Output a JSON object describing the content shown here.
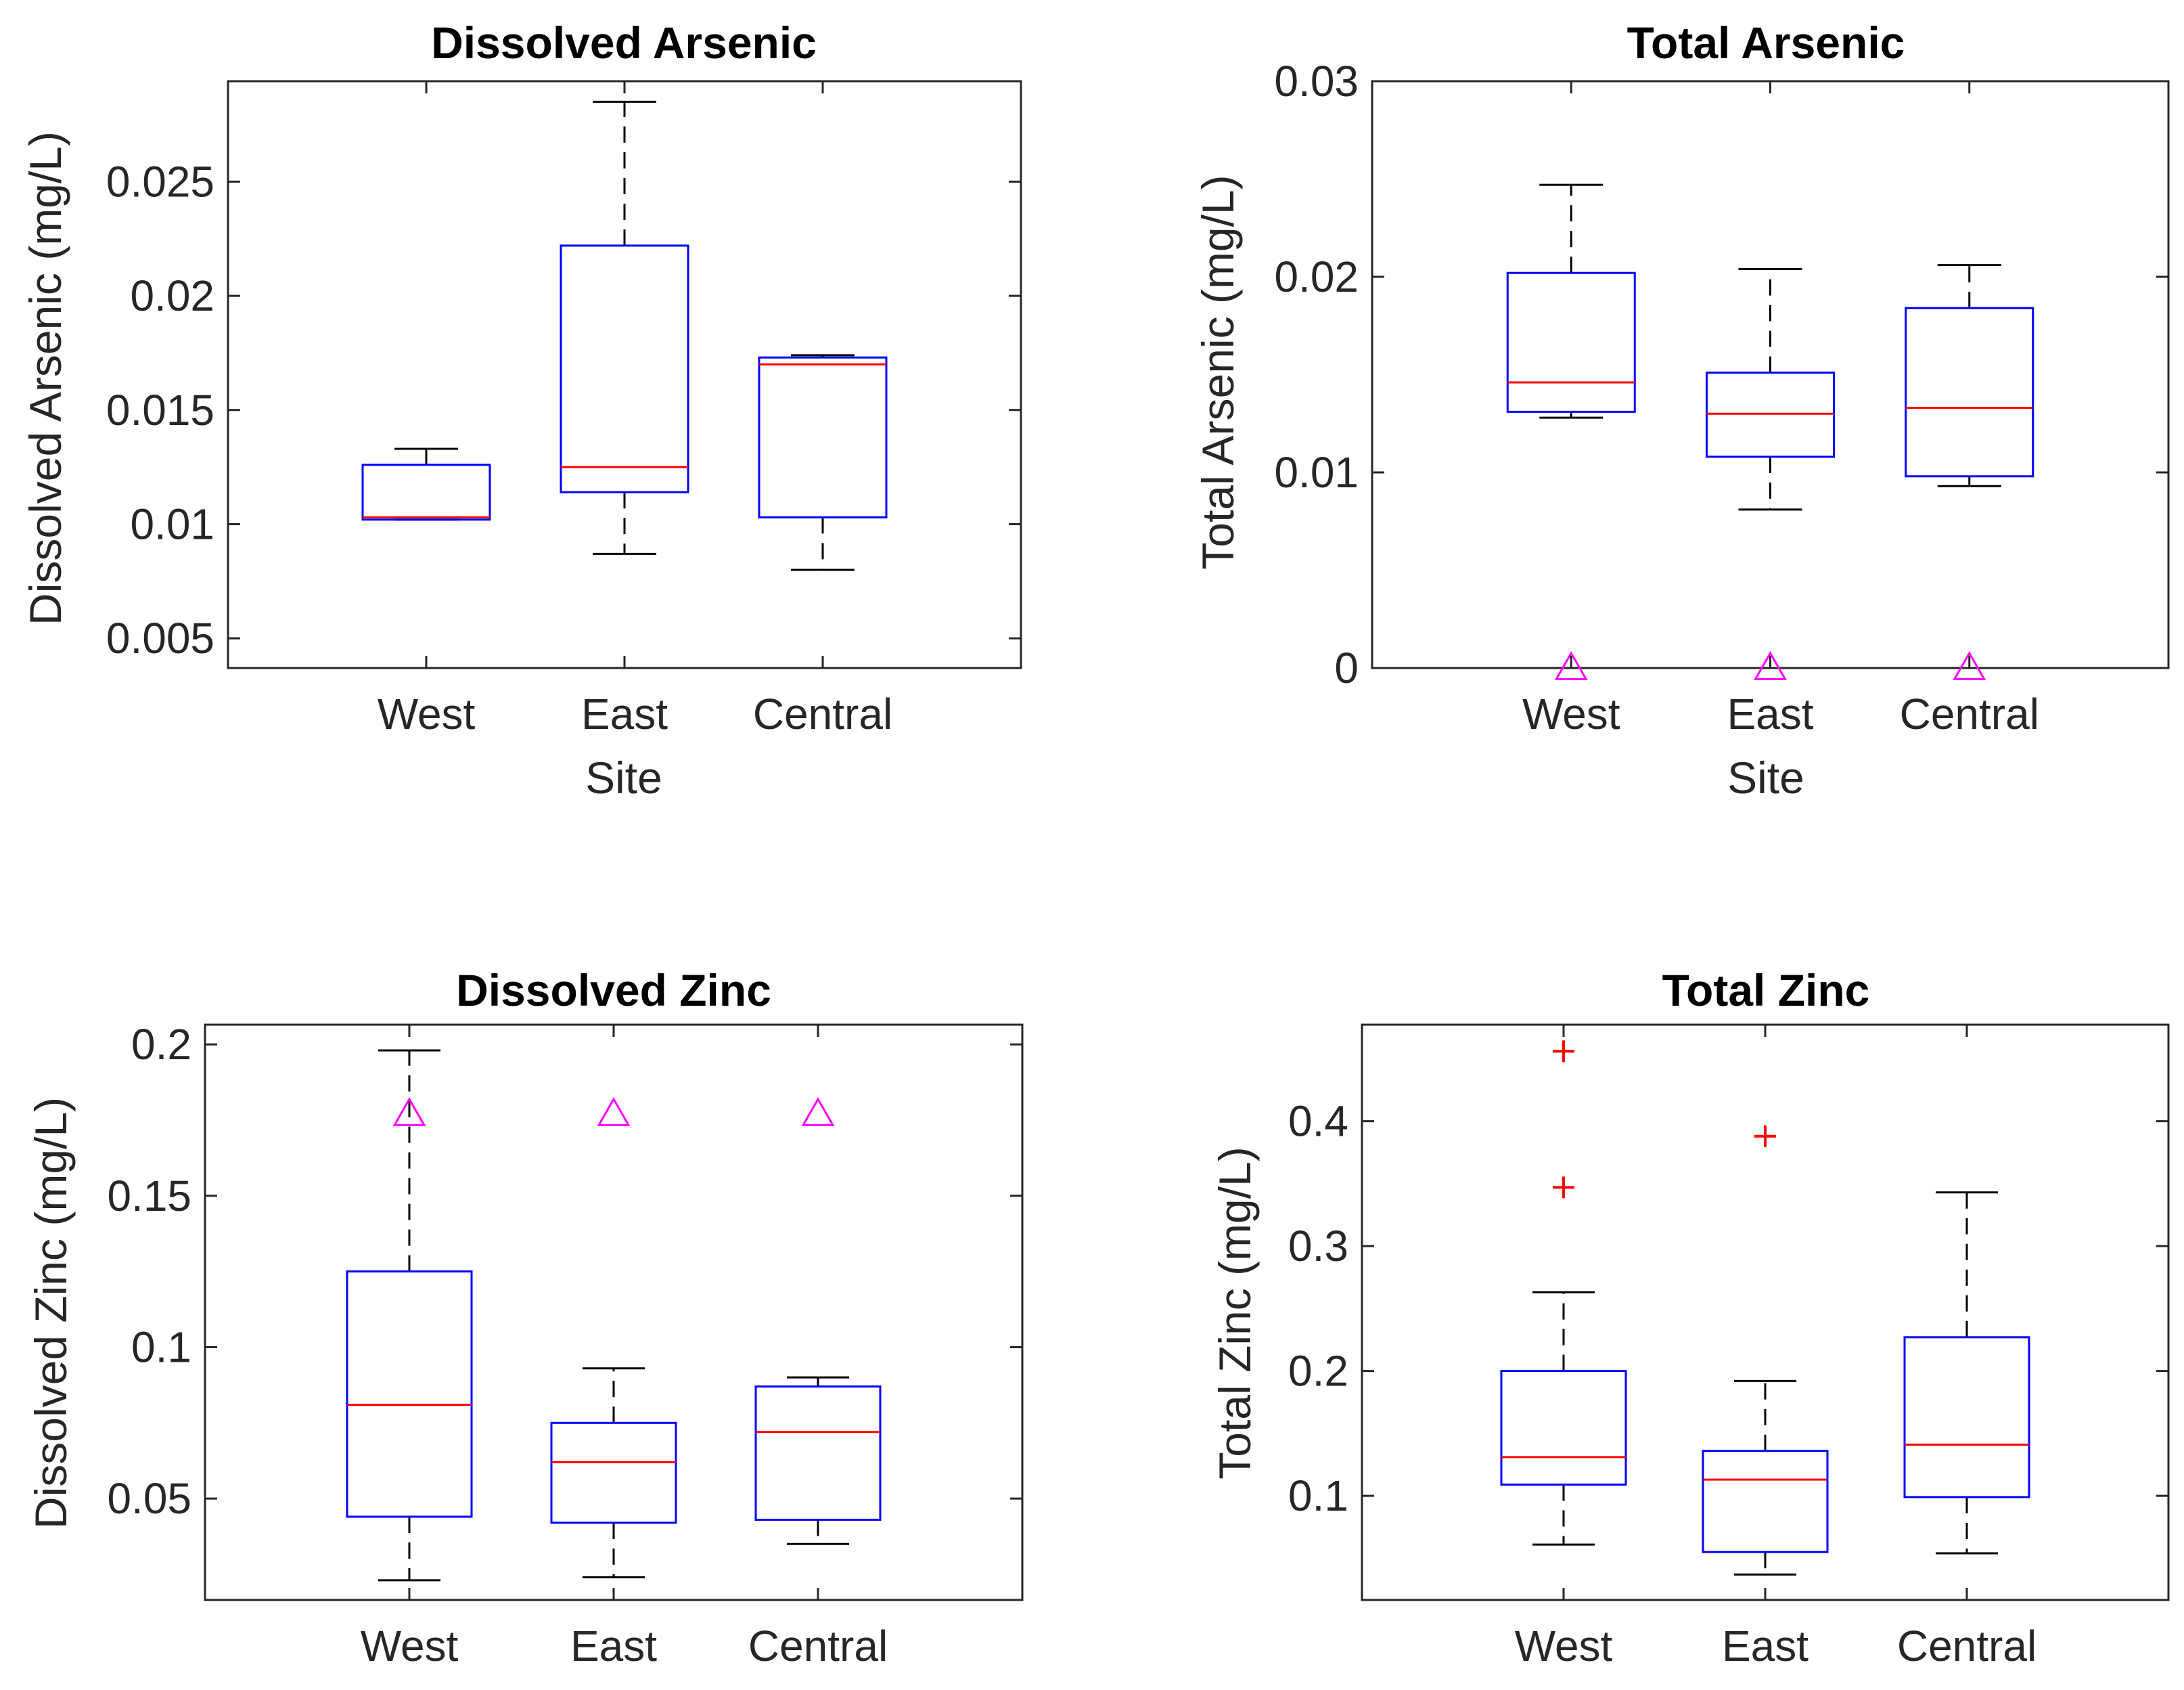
{
  "chart_data": [
    {
      "type": "boxplot",
      "title": "Dissolved Arsenic",
      "xlabel": "Site",
      "ylabel": "Dissolved Arsenic (mg/L)",
      "categories": [
        "West",
        "East",
        "Central"
      ],
      "ylim": [
        0.0037,
        0.0294
      ],
      "yticks": [
        0.005,
        0.01,
        0.015,
        0.02,
        0.025
      ],
      "ytick_labels": [
        "0.005",
        "0.01",
        "0.015",
        "0.02",
        "0.025"
      ],
      "boxes": [
        {
          "whisker_low": 0.0102,
          "q1": 0.0102,
          "median": 0.0103,
          "q3": 0.0126,
          "whisker_high": 0.0133
        },
        {
          "whisker_low": 0.0087,
          "q1": 0.0114,
          "median": 0.0125,
          "q3": 0.0222,
          "whisker_high": 0.0285
        },
        {
          "whisker_low": 0.008,
          "q1": 0.0103,
          "median": 0.017,
          "q3": 0.0173,
          "whisker_high": 0.0174
        }
      ],
      "outliers": [],
      "reference_markers": []
    },
    {
      "type": "boxplot",
      "title": "Total Arsenic",
      "xlabel": "Site",
      "ylabel": "Total Arsenic (mg/L)",
      "categories": [
        "West",
        "East",
        "Central"
      ],
      "ylim": [
        0,
        0.03
      ],
      "yticks": [
        0,
        0.01,
        0.02,
        0.03
      ],
      "ytick_labels": [
        "0",
        "0.01",
        "0.02",
        "0.03"
      ],
      "boxes": [
        {
          "whisker_low": 0.0128,
          "q1": 0.0131,
          "median": 0.0146,
          "q3": 0.0202,
          "whisker_high": 0.0247
        },
        {
          "whisker_low": 0.0081,
          "q1": 0.0108,
          "median": 0.013,
          "q3": 0.0151,
          "whisker_high": 0.0204
        },
        {
          "whisker_low": 0.0093,
          "q1": 0.0098,
          "median": 0.0133,
          "q3": 0.0184,
          "whisker_high": 0.0206
        }
      ],
      "outliers": [],
      "reference_markers": [
        {
          "category": "West",
          "value": 0.0
        },
        {
          "category": "East",
          "value": 0.0
        },
        {
          "category": "Central",
          "value": 0.0
        }
      ]
    },
    {
      "type": "boxplot",
      "title": "Dissolved Zinc",
      "xlabel": "",
      "ylabel": "Dissolved Zinc (mg/L)",
      "categories": [
        "West",
        "East",
        "Central"
      ],
      "ylim": [
        0.0165,
        0.2065
      ],
      "yticks": [
        0.05,
        0.1,
        0.15,
        0.2
      ],
      "ytick_labels": [
        "0.05",
        "0.1",
        "0.15",
        "0.2"
      ],
      "boxes": [
        {
          "whisker_low": 0.023,
          "q1": 0.044,
          "median": 0.081,
          "q3": 0.125,
          "whisker_high": 0.198
        },
        {
          "whisker_low": 0.024,
          "q1": 0.042,
          "median": 0.062,
          "q3": 0.075,
          "whisker_high": 0.093
        },
        {
          "whisker_low": 0.035,
          "q1": 0.043,
          "median": 0.072,
          "q3": 0.087,
          "whisker_high": 0.09
        }
      ],
      "outliers": [],
      "reference_markers": [
        {
          "category": "West",
          "value": 0.177
        },
        {
          "category": "East",
          "value": 0.177
        },
        {
          "category": "Central",
          "value": 0.177
        }
      ]
    },
    {
      "type": "boxplot",
      "title": "Total Zinc",
      "xlabel": "",
      "ylabel": "Total Zinc (mg/L)",
      "categories": [
        "West",
        "East",
        "Central"
      ],
      "ylim": [
        0.0166,
        0.4773
      ],
      "yticks": [
        0.1,
        0.2,
        0.3,
        0.4
      ],
      "ytick_labels": [
        "0.1",
        "0.2",
        "0.3",
        "0.4"
      ],
      "boxes": [
        {
          "whisker_low": 0.061,
          "q1": 0.109,
          "median": 0.131,
          "q3": 0.2,
          "whisker_high": 0.263
        },
        {
          "whisker_low": 0.037,
          "q1": 0.055,
          "median": 0.113,
          "q3": 0.136,
          "whisker_high": 0.192
        },
        {
          "whisker_low": 0.054,
          "q1": 0.099,
          "median": 0.141,
          "q3": 0.227,
          "whisker_high": 0.343
        }
      ],
      "outliers": [
        {
          "category": "West",
          "value": 0.456
        },
        {
          "category": "West",
          "value": 0.347
        },
        {
          "category": "East",
          "value": 0.388
        }
      ],
      "reference_markers": []
    }
  ],
  "colors": {
    "box": "#0000ff",
    "median": "#ff0000",
    "whisker": "#000000",
    "outlier": "#ff0000",
    "reference_marker": "#ff00ff",
    "axes": "#262626"
  }
}
